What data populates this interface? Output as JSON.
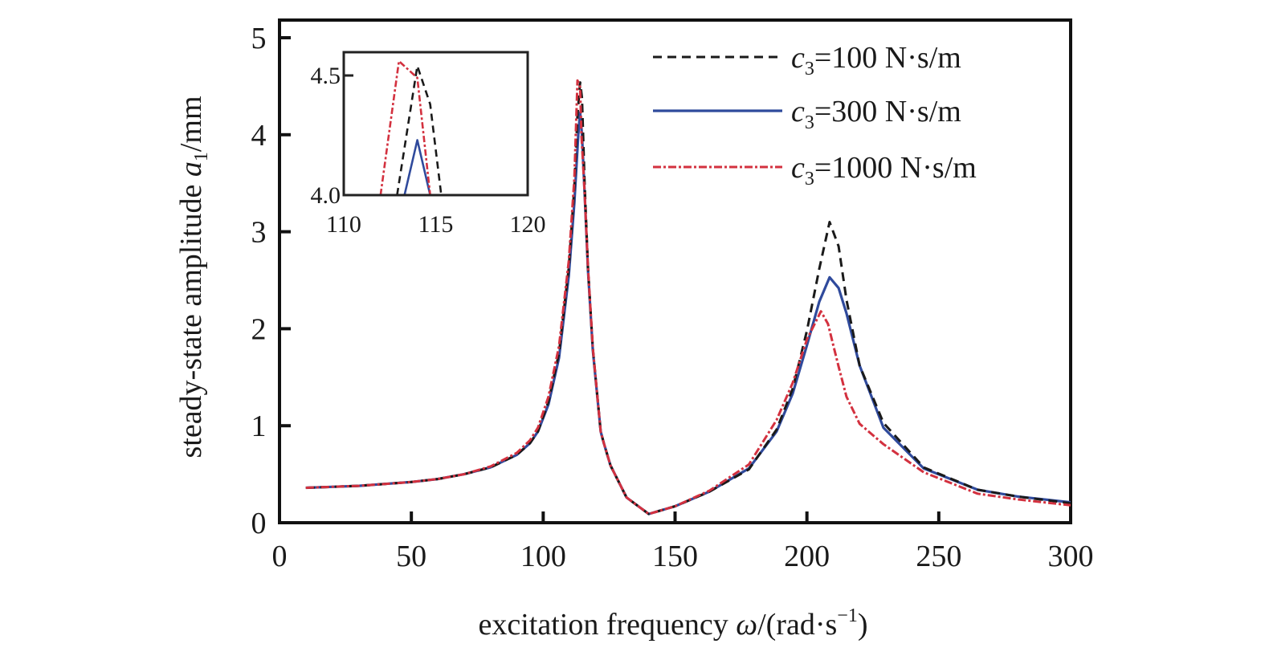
{
  "chart_data": {
    "type": "line",
    "title": "",
    "xlabel": "excitation frequency ω/(rad·s⁻¹)",
    "xlabel_parts": {
      "text": "excitation frequency ",
      "symbol": "ω",
      "unit_open": "/(rad·s",
      "sup": "−1",
      "unit_close": ")"
    },
    "ylabel": "steady-state amplitude a₁/mm",
    "ylabel_parts": {
      "text": "steady-state amplitude ",
      "symbol": "a",
      "sub": "1",
      "unit": "/mm"
    },
    "xlim": [
      0,
      300
    ],
    "ylim": [
      0,
      5.18
    ],
    "xticks": [
      0,
      50,
      100,
      150,
      200,
      250,
      300
    ],
    "xtick_labels": [
      "0",
      "50",
      "100",
      "150",
      "200",
      "250",
      "300"
    ],
    "yticks": [
      0,
      1,
      2,
      3,
      4,
      5
    ],
    "ytick_labels": [
      "0",
      "1",
      "2",
      "3",
      "4",
      "5"
    ],
    "grid": false,
    "legend_position": "top-right",
    "series": [
      {
        "name": "c3=100 N·s/m",
        "legend_symbol": "c",
        "legend_sub": "3",
        "legend_value": "=100 N·s/m",
        "color": "#1a1a1a",
        "style": "dashed",
        "x": [
          10,
          20,
          30,
          40,
          50,
          60,
          70,
          80,
          90,
          95,
          98,
          102,
          106,
          109.7,
          111.8,
          113,
          114,
          114.7,
          115.7,
          117,
          118.8,
          121.8,
          123,
          125.5,
          131.6,
          140,
          150,
          163,
          178,
          188.5,
          194.6,
          200,
          204.7,
          208.6,
          212,
          215,
          220,
          229,
          244.3,
          264.7,
          280,
          300
        ],
        "y": [
          0.36,
          0.37,
          0.38,
          0.4,
          0.42,
          0.45,
          0.5,
          0.57,
          0.7,
          0.82,
          0.94,
          1.25,
          1.75,
          2.63,
          3.46,
          4.2,
          4.54,
          4.38,
          3.5,
          2.63,
          1.8,
          0.94,
          0.82,
          0.59,
          0.26,
          0.09,
          0.17,
          0.32,
          0.55,
          0.96,
          1.38,
          1.98,
          2.62,
          3.1,
          2.85,
          2.3,
          1.62,
          1.03,
          0.57,
          0.34,
          0.27,
          0.2
        ]
      },
      {
        "name": "c3=300 N·s/m",
        "legend_symbol": "c",
        "legend_sub": "3",
        "legend_value": "=300 N·s/m",
        "color": "#2f4a9c",
        "style": "solid",
        "x": [
          10,
          20,
          30,
          40,
          50,
          60,
          70,
          80,
          90,
          95,
          98,
          102,
          106,
          109.7,
          111.8,
          113.3,
          114,
          114.7,
          115.7,
          117,
          118.8,
          121.8,
          123,
          125.5,
          131.6,
          140,
          150,
          163,
          178,
          188.5,
          194.6,
          200,
          204.7,
          208.6,
          212,
          215,
          220,
          229,
          244.3,
          264.7,
          280,
          300
        ],
        "y": [
          0.36,
          0.37,
          0.38,
          0.4,
          0.42,
          0.45,
          0.5,
          0.57,
          0.7,
          0.82,
          0.94,
          1.22,
          1.7,
          2.55,
          3.3,
          4.0,
          4.23,
          4.0,
          3.4,
          2.6,
          1.78,
          0.94,
          0.82,
          0.59,
          0.26,
          0.09,
          0.17,
          0.32,
          0.56,
          0.94,
          1.33,
          1.83,
          2.28,
          2.53,
          2.42,
          2.16,
          1.62,
          0.98,
          0.56,
          0.34,
          0.27,
          0.21
        ]
      },
      {
        "name": "c3=1000 N·s/m",
        "legend_symbol": "c",
        "legend_sub": "3",
        "legend_value": "=1000 N·s/m",
        "color": "#d3313f",
        "style": "dashdot",
        "x": [
          10,
          20,
          30,
          40,
          50,
          60,
          70,
          80,
          90,
          95,
          98,
          102,
          106,
          109.7,
          111.8,
          113,
          114,
          114.5,
          115.7,
          117,
          118.8,
          121.8,
          123,
          125.5,
          131.6,
          140,
          150,
          163,
          178,
          188.5,
          194.6,
          200,
          205.3,
          208,
          212,
          215,
          220,
          229,
          244.3,
          264.7,
          280,
          300
        ],
        "y": [
          0.36,
          0.37,
          0.38,
          0.4,
          0.42,
          0.45,
          0.5,
          0.58,
          0.72,
          0.85,
          0.98,
          1.3,
          1.82,
          2.7,
          3.55,
          4.56,
          4.49,
          4.0,
          3.4,
          2.63,
          1.8,
          0.94,
          0.82,
          0.59,
          0.26,
          0.09,
          0.17,
          0.33,
          0.6,
          1.06,
          1.44,
          1.89,
          2.18,
          2.05,
          1.61,
          1.3,
          1.02,
          0.81,
          0.52,
          0.3,
          0.24,
          0.18
        ]
      }
    ],
    "inset": {
      "xlim": [
        110,
        120
      ],
      "ylim": [
        4.0,
        4.6
      ],
      "xticks": [
        110,
        115,
        120
      ],
      "xtick_labels": [
        "110",
        "115",
        "120"
      ],
      "yticks": [
        4.0,
        4.5
      ],
      "ytick_labels": [
        "4.0",
        "4.5"
      ],
      "series": [
        {
          "name": "c3=100 N·s/m",
          "color": "#1a1a1a",
          "style": "dashed",
          "x": [
            112.9,
            114,
            114.7,
            115.3
          ],
          "y": [
            4.0,
            4.54,
            4.38,
            4.0
          ]
        },
        {
          "name": "c3=300 N·s/m",
          "color": "#2f4a9c",
          "style": "solid",
          "x": [
            113.3,
            114,
            114.7
          ],
          "y": [
            4.0,
            4.23,
            4.0
          ]
        },
        {
          "name": "c3=1000 N·s/m",
          "color": "#d3313f",
          "style": "dashdot",
          "x": [
            112,
            113,
            114,
            114.7
          ],
          "y": [
            4.0,
            4.56,
            4.49,
            4.0
          ]
        }
      ]
    }
  }
}
